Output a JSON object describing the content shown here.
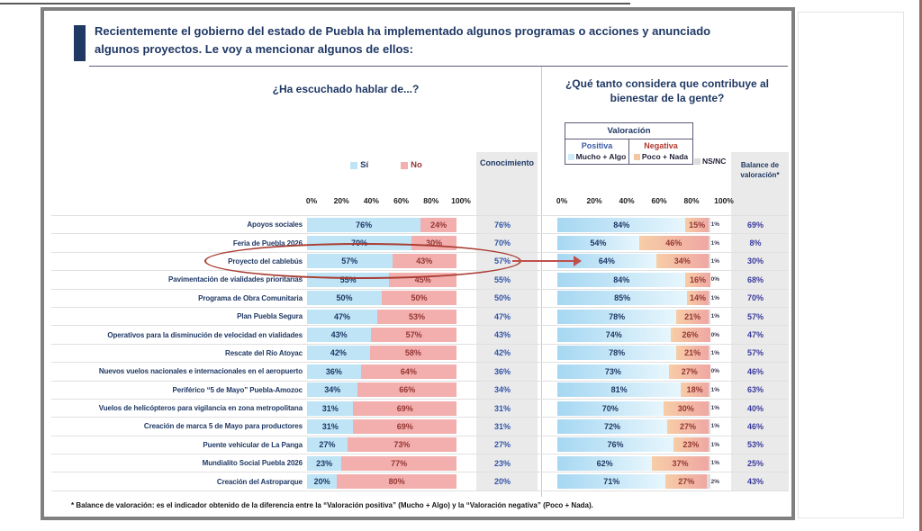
{
  "page": {
    "title": "Recientemente el gobierno del estado de Puebla ha implementado algunos programas o acciones y anunciado algunos proyectos. Le voy a mencionar algunos de ellos:",
    "footnote": "* Balance de valoración: es el indicador obtenido de la diferencia entre la “Valoración positiva” (Mucho + Algo) y la “Valoración negativa” (Poco + Nada)."
  },
  "left_panel": {
    "header": "¿Ha escuchado hablar de...?",
    "legend": {
      "si": "Sí",
      "no": "No"
    },
    "axis_ticks": [
      "0%",
      "20%",
      "40%",
      "60%",
      "80%",
      "100%"
    ],
    "column_header": "Conocimiento"
  },
  "right_panel": {
    "header": "¿Qué tanto considera que contribuye al bienestar de la gente?",
    "legend": {
      "box_title": "Valoración",
      "positive_label": "Positiva",
      "negative_label": "Negativa",
      "positive_item": "Mucho + Algo",
      "negative_item": "Poco + Nada",
      "nsnc_item": "NS/NC"
    },
    "axis_ticks": [
      "0%",
      "20%",
      "40%",
      "60%",
      "80%",
      "100%"
    ],
    "column_header": "Balance de valoración*"
  },
  "highlight": {
    "category": "Proyecto del cablebús",
    "marks": [
      "red-ellipse-around-left-row",
      "red-arrow-to-right-row"
    ]
  },
  "colors": {
    "navy": "#1F3864",
    "si_fill": "#BEE4F6",
    "no_fill": "#F2AFAD",
    "pos_fill_start": "#A6D7F2",
    "pos_fill_end": "#E7F6FD",
    "neg_fill_start": "#F7CDA6",
    "neg_fill_end": "#EFA7A3",
    "nsnc_fill": "#DCDCDC",
    "value_blue": "#3355A8",
    "value_red": "#943634",
    "balance_blue": "#3B3B9E",
    "column_bg": "#EAEAEA",
    "highlight_red": "#A93C32"
  },
  "chart_data": [
    {
      "type": "bar",
      "orientation": "horizontal",
      "stacked": true,
      "title": "¿Ha escuchado hablar de...?",
      "xlabel": "",
      "ylabel": "",
      "xlim": [
        0,
        100
      ],
      "x_ticks": [
        "0%",
        "20%",
        "40%",
        "60%",
        "80%",
        "100%"
      ],
      "units": "%",
      "legend_position": "top",
      "categories": [
        "Apoyos sociales",
        "Feria de Puebla 2026",
        "Proyecto del cablebús",
        "Pavimentación de vialidades prioritarias",
        "Programa de Obra Comunitaria",
        "Plan Puebla Segura",
        "Operativos para la disminución de velocidad en vialidades",
        "Rescate del Río Atoyac",
        "Nuevos vuelos nacionales e internacionales en el aeropuerto",
        "Periférico “5 de Mayo” Puebla-Amozoc",
        "Vuelos de helicópteros para vigilancia en zona metropolitana",
        "Creación de marca 5 de Mayo para productores",
        "Puente vehicular de La Panga",
        "Mundialito Social Puebla 2026",
        "Creación del Astroparque"
      ],
      "series": [
        {
          "name": "Sí",
          "values": [
            76,
            70,
            57,
            55,
            50,
            47,
            43,
            42,
            36,
            34,
            31,
            31,
            27,
            23,
            20
          ]
        },
        {
          "name": "No",
          "values": [
            24,
            30,
            43,
            45,
            50,
            53,
            57,
            58,
            64,
            66,
            69,
            69,
            73,
            77,
            80
          ]
        }
      ],
      "extra_column": {
        "header": "Conocimiento",
        "values": [
          76,
          70,
          57,
          55,
          50,
          47,
          43,
          42,
          36,
          34,
          31,
          31,
          27,
          23,
          20
        ]
      }
    },
    {
      "type": "bar",
      "orientation": "horizontal",
      "stacked": true,
      "title": "¿Qué tanto considera que contribuye al bienestar de la gente?",
      "xlabel": "",
      "ylabel": "",
      "xlim": [
        0,
        100
      ],
      "x_ticks": [
        "0%",
        "20%",
        "40%",
        "60%",
        "80%",
        "100%"
      ],
      "units": "%",
      "legend_position": "top",
      "categories": [
        "Apoyos sociales",
        "Feria de Puebla 2026",
        "Proyecto del cablebús",
        "Pavimentación de vialidades prioritarias",
        "Programa de Obra Comunitaria",
        "Plan Puebla Segura",
        "Operativos para la disminución de velocidad en vialidades",
        "Rescate del Río Atoyac",
        "Nuevos vuelos nacionales e internacionales en el aeropuerto",
        "Periférico “5 de Mayo” Puebla-Amozoc",
        "Vuelos de helicópteros para vigilancia en zona metropolitana",
        "Creación de marca 5 de Mayo para productores",
        "Puente vehicular de La Panga",
        "Mundialito Social Puebla 2026",
        "Creación del Astroparque"
      ],
      "series": [
        {
          "name": "Mucho + Algo",
          "group": "Valoración Positiva",
          "values": [
            84,
            54,
            64,
            84,
            85,
            78,
            74,
            78,
            73,
            81,
            70,
            72,
            76,
            62,
            71
          ]
        },
        {
          "name": "Poco + Nada",
          "group": "Valoración Negativa",
          "values": [
            15,
            46,
            34,
            16,
            14,
            21,
            26,
            21,
            27,
            18,
            30,
            27,
            23,
            37,
            27
          ]
        },
        {
          "name": "NS/NC",
          "values": [
            1,
            1,
            1,
            0,
            1,
            1,
            0,
            1,
            0,
            1,
            1,
            1,
            1,
            1,
            2
          ]
        }
      ],
      "extra_column": {
        "header": "Balance de valoración*",
        "values": [
          69,
          8,
          30,
          68,
          70,
          57,
          47,
          57,
          46,
          63,
          40,
          46,
          53,
          25,
          43
        ]
      }
    }
  ]
}
